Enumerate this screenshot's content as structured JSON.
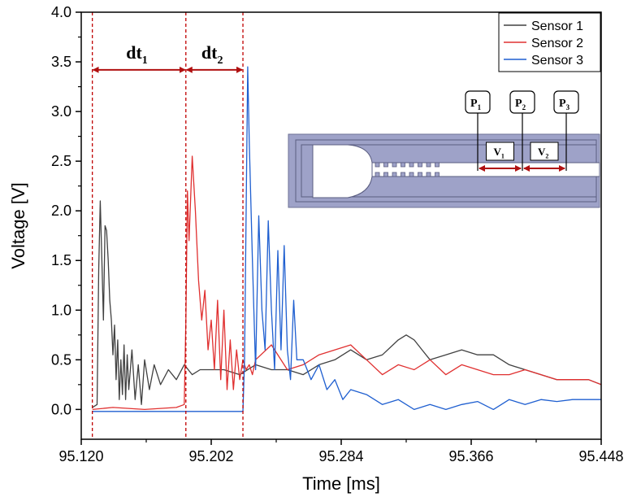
{
  "chart_data": {
    "type": "line",
    "title": "",
    "xlabel": "Time [ms]",
    "ylabel": "Voltage [V]",
    "xlim": [
      95.12,
      95.448
    ],
    "ylim": [
      -0.3,
      4.0
    ],
    "x_ticks": [
      95.12,
      95.202,
      95.284,
      95.366,
      95.448
    ],
    "x_tick_labels": [
      "95.120",
      "95.202",
      "95.284",
      "95.366",
      "95.448"
    ],
    "y_ticks": [
      0.0,
      0.5,
      1.0,
      1.5,
      2.0,
      2.5,
      3.0,
      3.5,
      4.0
    ],
    "y_tick_labels": [
      "0.0",
      "0.5",
      "1.0",
      "1.5",
      "2.0",
      "2.5",
      "3.0",
      "3.5",
      "4.0"
    ],
    "legend_position": "top-right",
    "series": [
      {
        "name": "Sensor 1",
        "color": "#404040",
        "x": [
          95.127,
          95.13,
          95.131,
          95.132,
          95.133,
          95.134,
          95.135,
          95.136,
          95.137,
          95.138,
          95.139,
          95.14,
          95.141,
          95.142,
          95.143,
          95.144,
          95.145,
          95.146,
          95.147,
          95.148,
          95.149,
          95.15,
          95.152,
          95.154,
          95.156,
          95.158,
          95.16,
          95.163,
          95.166,
          95.17,
          95.175,
          95.18,
          95.185,
          95.19,
          95.195,
          95.2,
          95.21,
          95.22,
          95.23,
          95.24,
          95.25,
          95.26,
          95.27,
          95.28,
          95.29,
          95.3,
          95.31,
          95.32,
          95.325,
          95.33,
          95.335,
          95.34,
          95.35,
          95.36,
          95.37,
          95.38,
          95.39,
          95.4,
          95.41,
          95.42,
          95.43,
          95.44,
          95.448
        ],
        "values": [
          0.02,
          0.05,
          1.4,
          2.1,
          1.5,
          0.9,
          1.85,
          1.8,
          1.5,
          1.1,
          0.9,
          0.55,
          0.85,
          0.3,
          0.7,
          0.1,
          0.5,
          0.15,
          0.65,
          0.1,
          0.55,
          0.2,
          0.6,
          0.1,
          0.45,
          0.05,
          0.5,
          0.2,
          0.45,
          0.25,
          0.4,
          0.3,
          0.45,
          0.35,
          0.4,
          0.4,
          0.4,
          0.35,
          0.45,
          0.4,
          0.4,
          0.35,
          0.45,
          0.5,
          0.6,
          0.5,
          0.55,
          0.7,
          0.75,
          0.7,
          0.6,
          0.5,
          0.55,
          0.6,
          0.55,
          0.55,
          0.45,
          0.4,
          0.35,
          0.3,
          0.3,
          0.3,
          0.25
        ]
      },
      {
        "name": "Sensor 2",
        "color": "#e03030",
        "x": [
          95.127,
          95.14,
          95.16,
          95.18,
          95.185,
          95.186,
          95.187,
          95.188,
          95.19,
          95.192,
          95.194,
          95.196,
          95.198,
          95.2,
          95.202,
          95.204,
          95.206,
          95.208,
          95.21,
          95.212,
          95.214,
          95.216,
          95.218,
          95.22,
          95.222,
          95.224,
          95.226,
          95.228,
          95.23,
          95.24,
          95.25,
          95.26,
          95.27,
          95.28,
          95.29,
          95.3,
          95.31,
          95.32,
          95.33,
          95.34,
          95.35,
          95.36,
          95.37,
          95.38,
          95.39,
          95.4,
          95.41,
          95.42,
          95.43,
          95.44,
          95.448
        ],
        "values": [
          0.0,
          0.02,
          0.0,
          0.02,
          0.05,
          0.9,
          2.2,
          1.7,
          2.55,
          2.0,
          1.3,
          0.9,
          1.2,
          0.6,
          0.9,
          0.4,
          1.1,
          0.3,
          1.0,
          0.2,
          0.7,
          0.2,
          0.6,
          0.3,
          0.5,
          0.4,
          0.45,
          0.35,
          0.5,
          0.65,
          0.4,
          0.45,
          0.55,
          0.6,
          0.65,
          0.5,
          0.35,
          0.45,
          0.4,
          0.5,
          0.35,
          0.45,
          0.4,
          0.35,
          0.35,
          0.4,
          0.35,
          0.3,
          0.3,
          0.3,
          0.25
        ]
      },
      {
        "name": "Sensor 3",
        "color": "#1f5fd0",
        "x": [
          95.127,
          95.15,
          95.18,
          95.21,
          95.222,
          95.223,
          95.225,
          95.226,
          95.228,
          95.23,
          95.232,
          95.234,
          95.236,
          95.238,
          95.24,
          95.242,
          95.244,
          95.246,
          95.248,
          95.25,
          95.252,
          95.254,
          95.256,
          95.26,
          95.265,
          95.27,
          95.275,
          95.28,
          95.285,
          95.29,
          95.3,
          95.31,
          95.32,
          95.33,
          95.34,
          95.35,
          95.36,
          95.37,
          95.38,
          95.39,
          95.4,
          95.41,
          95.42,
          95.43,
          95.44,
          95.448
        ],
        "values": [
          -0.02,
          -0.02,
          -0.02,
          -0.02,
          -0.02,
          0.5,
          3.45,
          2.7,
          1.5,
          0.4,
          1.95,
          1.0,
          0.6,
          1.9,
          1.0,
          0.4,
          1.6,
          0.6,
          1.65,
          0.6,
          0.3,
          1.1,
          0.5,
          0.5,
          0.3,
          0.45,
          0.2,
          0.3,
          0.1,
          0.2,
          0.15,
          0.05,
          0.1,
          0.0,
          0.05,
          0.0,
          0.05,
          0.08,
          0.0,
          0.1,
          0.05,
          0.1,
          0.08,
          0.1,
          0.1,
          0.1
        ]
      }
    ],
    "annotations": {
      "markers_x": [
        95.127,
        95.186,
        95.222
      ],
      "intervals": [
        {
          "label": "dt",
          "sub": "1",
          "from": 95.127,
          "to": 95.186,
          "y": 3.42
        },
        {
          "label": "dt",
          "sub": "2",
          "from": 95.186,
          "to": 95.222,
          "y": 3.42
        }
      ],
      "inset": {
        "probes": [
          {
            "label": "P",
            "sub": "1"
          },
          {
            "label": "P",
            "sub": "2"
          },
          {
            "label": "P",
            "sub": "3"
          }
        ],
        "velocities": [
          {
            "label": "V",
            "sub": "1"
          },
          {
            "label": "V",
            "sub": "2"
          }
        ]
      }
    }
  }
}
